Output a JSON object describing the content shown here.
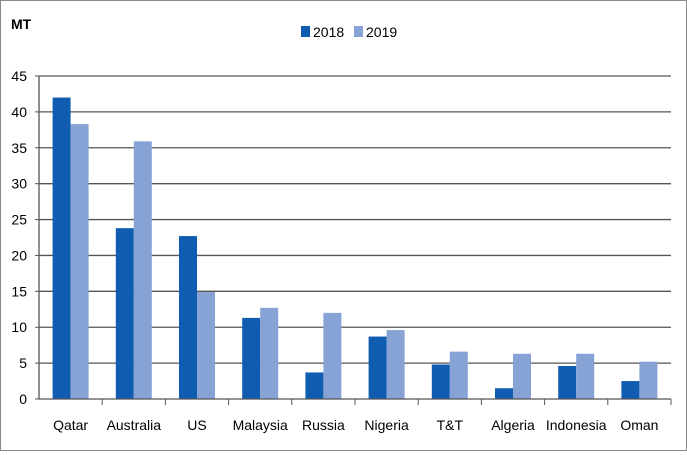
{
  "chart_data": {
    "type": "bar",
    "ylabel": "MT",
    "ylim": [
      0,
      45
    ],
    "yticks": [
      0,
      5,
      10,
      15,
      20,
      25,
      30,
      35,
      40,
      45
    ],
    "grid": true,
    "legend_position": "top-center",
    "categories": [
      "Qatar",
      "Australia",
      "US",
      "Malaysia",
      "Russia",
      "Nigeria",
      "T&T",
      "Algeria",
      "Indonesia",
      "Oman"
    ],
    "series": [
      {
        "name": "2018",
        "color": "#0f5cb0",
        "values": [
          42.0,
          23.8,
          22.7,
          11.3,
          3.7,
          8.7,
          4.8,
          1.5,
          4.6,
          2.5
        ]
      },
      {
        "name": "2019",
        "color": "#87a3d6",
        "values": [
          38.3,
          35.9,
          14.9,
          12.7,
          12.0,
          9.6,
          6.6,
          6.3,
          6.3,
          5.2
        ]
      }
    ]
  }
}
